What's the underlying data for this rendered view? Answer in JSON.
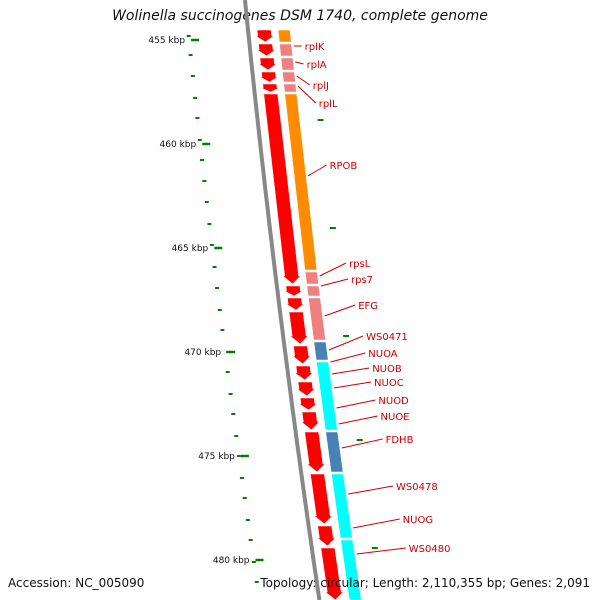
{
  "title": "Wolinella succinogenes DSM 1740, complete genome",
  "footer": {
    "accession": "Accession: NC_005090",
    "stats": "Topology: circular; Length: 2,110,355 bp; Genes: 2,091"
  },
  "colors": {
    "cds": "#ff0000",
    "rna_operon": "#ff8c00",
    "ribosomal": "#f08080",
    "blue_gene": "#4682b4",
    "cyan_gene": "#00ffff",
    "gc_ticks": "#008000",
    "labels": "#cc0000",
    "backbone": "#888888"
  },
  "kbp_labels": [
    "455 kbp",
    "460 kbp",
    "465 kbp",
    "470 kbp",
    "475 kbp",
    "480 kbp"
  ],
  "genes": [
    "rplK",
    "rplA",
    "rplJ",
    "rplL",
    "RPOB",
    "rpsL",
    "rps7",
    "EFG",
    "WS0471",
    "NUOA",
    "NUOB",
    "NUOC",
    "NUOD",
    "NUOE",
    "FDHB",
    "WS0478",
    "NUOG",
    "WS0480"
  ]
}
